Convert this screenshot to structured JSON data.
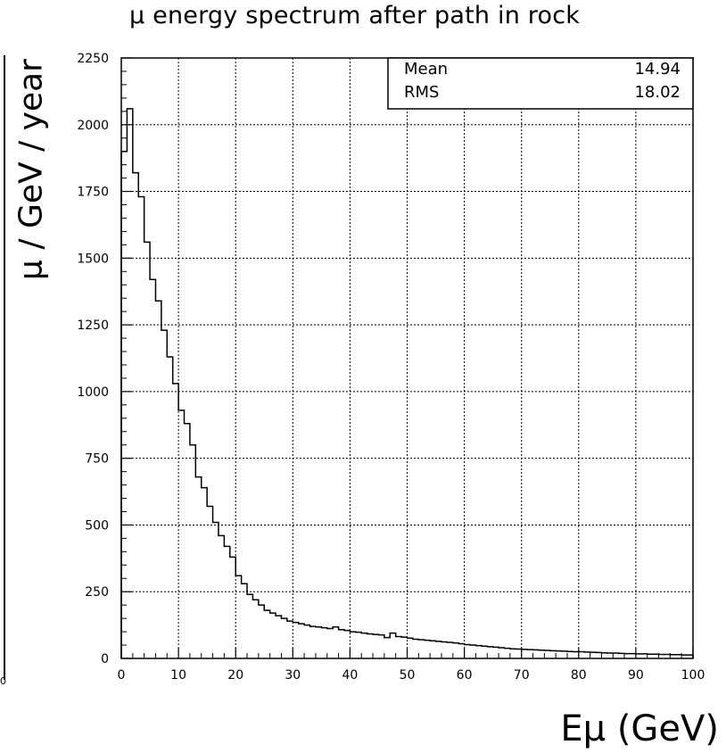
{
  "chart_data": {
    "type": "histogram",
    "title": "μ energy spectrum after path in rock",
    "xlabel": "Eμ (GeV)",
    "ylabel": "μ / GeV / year",
    "xlim": [
      0,
      100
    ],
    "ylim": [
      0,
      2250
    ],
    "xticks": [
      "0",
      "10",
      "20",
      "30",
      "40",
      "50",
      "60",
      "70",
      "80",
      "90",
      "100"
    ],
    "yticks": [
      "0",
      "250",
      "500",
      "750",
      "1000",
      "1250",
      "1500",
      "1750",
      "2000",
      "2250"
    ],
    "grid": true,
    "bin_width": 1,
    "bins_x": [
      0,
      1,
      2,
      3,
      4,
      5,
      6,
      7,
      8,
      9,
      10,
      11,
      12,
      13,
      14,
      15,
      16,
      17,
      18,
      19,
      20,
      21,
      22,
      23,
      24,
      25,
      26,
      27,
      28,
      29,
      30,
      31,
      32,
      33,
      34,
      35,
      36,
      37,
      38,
      39,
      40,
      41,
      42,
      43,
      44,
      45,
      46,
      47,
      48,
      49,
      50,
      51,
      52,
      53,
      54,
      55,
      56,
      57,
      58,
      59,
      60,
      61,
      62,
      63,
      64,
      65,
      66,
      67,
      68,
      69,
      70,
      71,
      72,
      73,
      74,
      75,
      76,
      77,
      78,
      79,
      80,
      81,
      82,
      83,
      84,
      85,
      86,
      87,
      88,
      89,
      90,
      91,
      92,
      93,
      94,
      95,
      96,
      97,
      98,
      99
    ],
    "values": [
      1900,
      2060,
      1820,
      1730,
      1560,
      1420,
      1340,
      1230,
      1130,
      1030,
      930,
      880,
      800,
      680,
      640,
      570,
      510,
      460,
      420,
      380,
      310,
      280,
      240,
      220,
      200,
      180,
      170,
      160,
      150,
      140,
      135,
      130,
      125,
      120,
      118,
      115,
      112,
      118,
      108,
      105,
      100,
      98,
      95,
      92,
      90,
      88,
      78,
      95,
      82,
      80,
      76,
      72,
      70,
      68,
      66,
      64,
      62,
      60,
      58,
      55,
      52,
      50,
      48,
      46,
      44,
      42,
      40,
      38,
      36,
      35,
      34,
      33,
      32,
      31,
      30,
      29,
      28,
      27,
      26,
      25,
      25,
      24,
      23,
      22,
      21,
      20,
      20,
      19,
      18,
      18,
      17,
      17,
      16,
      16,
      15,
      15,
      14,
      14,
      13,
      13
    ],
    "stats_box": {
      "position": "top-right",
      "rows": [
        {
          "label": "Mean",
          "value": "14.94"
        },
        {
          "label": "RMS",
          "value": "18.02"
        }
      ]
    },
    "line_color": "#000000",
    "grid_color": "#000000"
  },
  "margin_fragment": {
    "tick_label": "0"
  }
}
